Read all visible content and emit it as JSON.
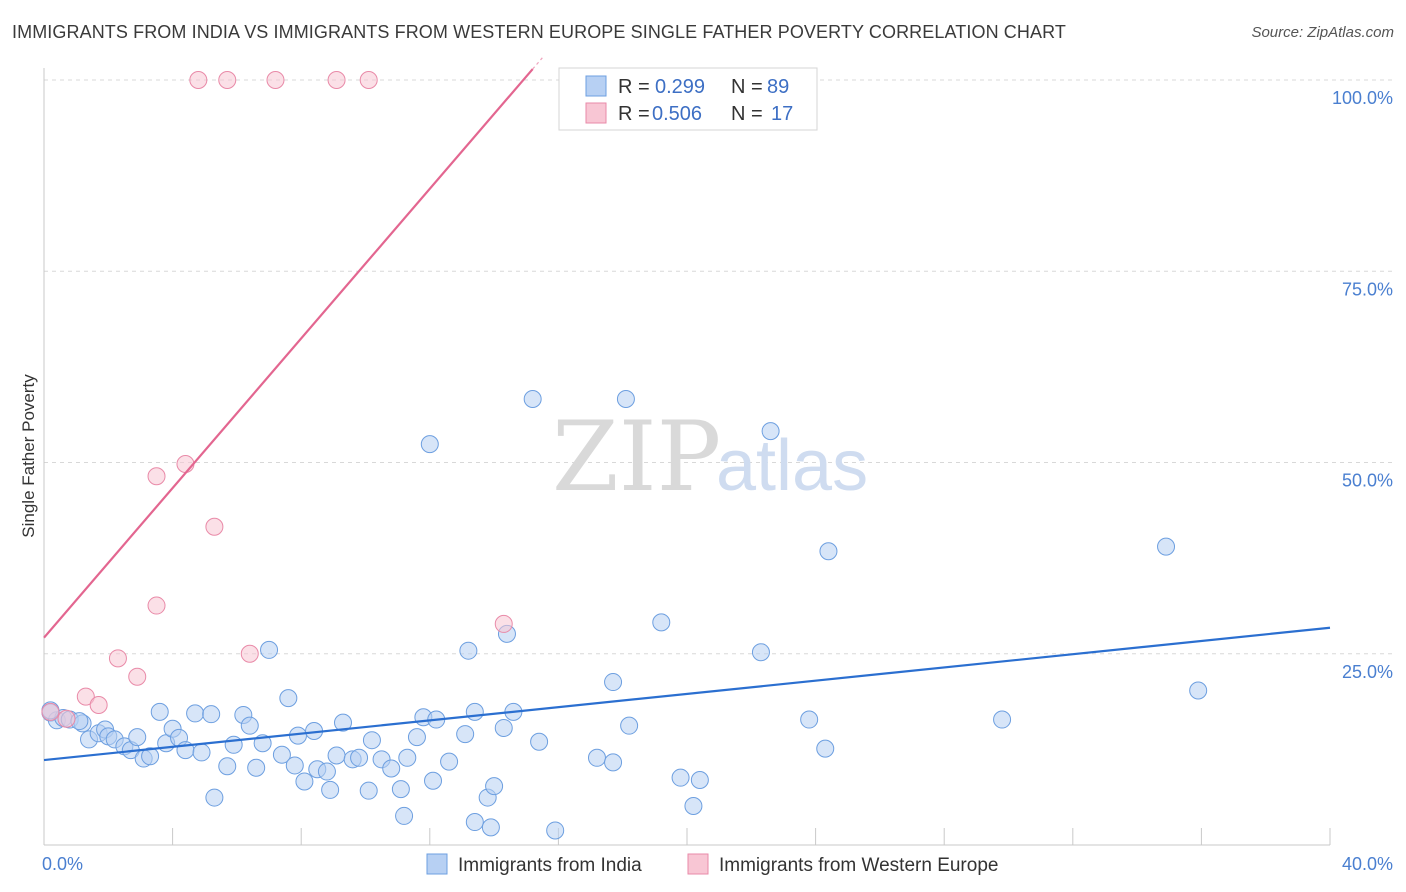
{
  "title": "IMMIGRANTS FROM INDIA VS IMMIGRANTS FROM WESTERN EUROPE SINGLE FATHER POVERTY CORRELATION CHART",
  "source": "Source: ZipAtlas.com",
  "watermark": {
    "zip": "ZIP",
    "atlas": "atlas"
  },
  "colors": {
    "india_fill": "#b7d0f3",
    "india_stroke": "#6d9fe0",
    "india_line": "#2b6fd0",
    "weu_fill": "#f8c6d4",
    "weu_stroke": "#e98aa8",
    "weu_line": "#e36690",
    "tick_text": "#4a7fd0",
    "grid": "#d8d8d8"
  },
  "legend": {
    "india": {
      "r_label": "R =",
      "r_value": "0.299",
      "n_label": "N =",
      "n_value": "89"
    },
    "weu": {
      "r_label": "R =",
      "r_value": "0.506",
      "n_label": "N =",
      "n_value": "17"
    }
  },
  "chart_data": {
    "type": "scatter",
    "title": "IMMIGRANTS FROM INDIA VS IMMIGRANTS FROM WESTERN EUROPE SINGLE FATHER POVERTY CORRELATION CHART",
    "xlabel": "",
    "ylabel": "Single Father Poverty",
    "xlim": [
      0,
      40
    ],
    "ylim": [
      0,
      100
    ],
    "x_tick_labels": [
      {
        "value": 0,
        "label": "0.0%"
      },
      {
        "value": 40,
        "label": "40.0%"
      }
    ],
    "y_tick_labels": [
      {
        "value": 25,
        "label": "25.0%"
      },
      {
        "value": 50,
        "label": "50.0%"
      },
      {
        "value": 75,
        "label": "75.0%"
      },
      {
        "value": 100,
        "label": "100.0%"
      }
    ],
    "grid": true,
    "legend_position": "top-center",
    "series": [
      {
        "name": "Immigrants from India",
        "r": 0.299,
        "n": 89,
        "trend": {
          "x": [
            0,
            40
          ],
          "y": [
            11.1,
            28.4
          ]
        },
        "points": [
          [
            0.2,
            17.3
          ],
          [
            0.4,
            16.3
          ],
          [
            0.6,
            16.6
          ],
          [
            0.8,
            16.4
          ],
          [
            1.2,
            15.9
          ],
          [
            1.4,
            13.8
          ],
          [
            1.7,
            14.6
          ],
          [
            1.9,
            15.1
          ],
          [
            2.0,
            14.2
          ],
          [
            2.2,
            13.8
          ],
          [
            2.5,
            12.9
          ],
          [
            2.7,
            12.4
          ],
          [
            2.9,
            14.1
          ],
          [
            3.1,
            11.3
          ],
          [
            3.3,
            11.6
          ],
          [
            3.6,
            17.4
          ],
          [
            3.8,
            13.3
          ],
          [
            4.0,
            15.2
          ],
          [
            4.2,
            14.0
          ],
          [
            4.4,
            12.4
          ],
          [
            4.7,
            17.2
          ],
          [
            4.9,
            12.1
          ],
          [
            5.2,
            17.1
          ],
          [
            5.3,
            6.2
          ],
          [
            5.7,
            10.3
          ],
          [
            5.9,
            13.1
          ],
          [
            6.2,
            17.0
          ],
          [
            6.4,
            15.6
          ],
          [
            6.6,
            10.1
          ],
          [
            6.8,
            13.3
          ],
          [
            7.0,
            25.5
          ],
          [
            7.4,
            11.8
          ],
          [
            7.6,
            19.2
          ],
          [
            7.8,
            10.4
          ],
          [
            7.9,
            14.3
          ],
          [
            8.1,
            8.3
          ],
          [
            8.4,
            14.9
          ],
          [
            8.5,
            9.9
          ],
          [
            8.8,
            9.6
          ],
          [
            8.9,
            7.2
          ],
          [
            9.3,
            16.0
          ],
          [
            9.1,
            11.7
          ],
          [
            9.6,
            11.2
          ],
          [
            9.8,
            11.4
          ],
          [
            10.1,
            7.1
          ],
          [
            10.2,
            13.7
          ],
          [
            10.5,
            11.2
          ],
          [
            10.8,
            10.0
          ],
          [
            11.1,
            7.3
          ],
          [
            11.2,
            3.8
          ],
          [
            11.3,
            11.4
          ],
          [
            11.6,
            14.1
          ],
          [
            11.8,
            16.7
          ],
          [
            12.1,
            8.4
          ],
          [
            12.2,
            16.4
          ],
          [
            12.6,
            10.9
          ],
          [
            13.1,
            14.5
          ],
          [
            13.2,
            25.4
          ],
          [
            13.4,
            17.4
          ],
          [
            13.4,
            3.0
          ],
          [
            13.8,
            6.2
          ],
          [
            13.9,
            2.3
          ],
          [
            14.0,
            7.7
          ],
          [
            14.3,
            15.3
          ],
          [
            14.4,
            27.6
          ],
          [
            14.6,
            17.4
          ],
          [
            15.2,
            58.3
          ],
          [
            15.4,
            13.5
          ],
          [
            12.0,
            52.4
          ],
          [
            15.9,
            1.9
          ],
          [
            17.2,
            11.4
          ],
          [
            17.7,
            21.3
          ],
          [
            17.7,
            10.8
          ],
          [
            18.2,
            15.6
          ],
          [
            18.1,
            58.3
          ],
          [
            19.2,
            29.1
          ],
          [
            19.8,
            8.8
          ],
          [
            20.2,
            5.1
          ],
          [
            20.4,
            8.5
          ],
          [
            22.3,
            25.2
          ],
          [
            22.6,
            54.1
          ],
          [
            23.8,
            16.4
          ],
          [
            24.3,
            12.6
          ],
          [
            24.4,
            38.4
          ],
          [
            29.8,
            16.4
          ],
          [
            34.9,
            39.0
          ],
          [
            35.9,
            20.2
          ],
          [
            0.2,
            17.6
          ],
          [
            1.1,
            16.2
          ]
        ]
      },
      {
        "name": "Immigrants from Western Europe",
        "r": 0.506,
        "n": 17,
        "trend": {
          "x": [
            0,
            15.5
          ],
          "y": [
            27.1,
            102.9
          ]
        },
        "points": [
          [
            0.2,
            17.4
          ],
          [
            0.7,
            16.5
          ],
          [
            1.3,
            19.4
          ],
          [
            1.7,
            18.3
          ],
          [
            2.3,
            24.4
          ],
          [
            2.9,
            22.0
          ],
          [
            3.5,
            31.3
          ],
          [
            3.5,
            48.2
          ],
          [
            4.4,
            49.8
          ],
          [
            5.3,
            41.6
          ],
          [
            6.4,
            25.0
          ],
          [
            4.8,
            100.0
          ],
          [
            5.7,
            100.0
          ],
          [
            7.2,
            100.0
          ],
          [
            9.1,
            100.0
          ],
          [
            10.1,
            100.0
          ],
          [
            14.3,
            28.9
          ]
        ]
      }
    ]
  },
  "bottom_legend": {
    "india_label": "Immigrants from India",
    "weu_label": "Immigrants from Western Europe"
  }
}
